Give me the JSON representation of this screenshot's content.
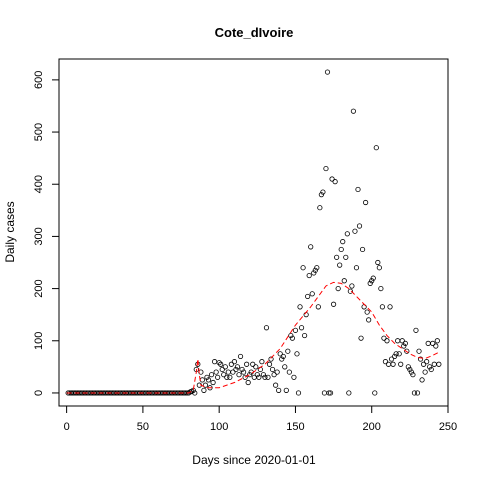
{
  "chart_data": {
    "type": "scatter",
    "title": "Cote_dIvoire",
    "xlabel": "Days since 2020-01-01",
    "ylabel": "Daily cases",
    "xlim": [
      -5,
      250
    ],
    "ylim": [
      -25,
      640
    ],
    "x_ticks": [
      0,
      50,
      100,
      150,
      200,
      250
    ],
    "y_ticks": [
      0,
      100,
      200,
      300,
      400,
      500,
      600
    ],
    "points": [
      [
        1,
        0
      ],
      [
        2,
        0
      ],
      [
        3,
        0
      ],
      [
        4,
        0
      ],
      [
        5,
        0
      ],
      [
        6,
        0
      ],
      [
        7,
        0
      ],
      [
        8,
        0
      ],
      [
        9,
        0
      ],
      [
        10,
        0
      ],
      [
        11,
        0
      ],
      [
        12,
        0
      ],
      [
        13,
        0
      ],
      [
        14,
        0
      ],
      [
        15,
        0
      ],
      [
        16,
        0
      ],
      [
        17,
        0
      ],
      [
        18,
        0
      ],
      [
        19,
        0
      ],
      [
        20,
        0
      ],
      [
        21,
        0
      ],
      [
        22,
        0
      ],
      [
        23,
        0
      ],
      [
        24,
        0
      ],
      [
        25,
        0
      ],
      [
        26,
        0
      ],
      [
        27,
        0
      ],
      [
        28,
        0
      ],
      [
        29,
        0
      ],
      [
        30,
        0
      ],
      [
        31,
        0
      ],
      [
        32,
        0
      ],
      [
        33,
        0
      ],
      [
        34,
        0
      ],
      [
        35,
        0
      ],
      [
        36,
        0
      ],
      [
        37,
        0
      ],
      [
        38,
        0
      ],
      [
        39,
        0
      ],
      [
        40,
        0
      ],
      [
        41,
        0
      ],
      [
        42,
        0
      ],
      [
        43,
        0
      ],
      [
        44,
        0
      ],
      [
        45,
        0
      ],
      [
        46,
        0
      ],
      [
        47,
        0
      ],
      [
        48,
        0
      ],
      [
        49,
        0
      ],
      [
        50,
        0
      ],
      [
        51,
        0
      ],
      [
        52,
        0
      ],
      [
        53,
        0
      ],
      [
        54,
        0
      ],
      [
        55,
        0
      ],
      [
        56,
        0
      ],
      [
        57,
        0
      ],
      [
        58,
        0
      ],
      [
        59,
        0
      ],
      [
        60,
        0
      ],
      [
        61,
        0
      ],
      [
        62,
        0
      ],
      [
        63,
        0
      ],
      [
        64,
        0
      ],
      [
        65,
        0
      ],
      [
        66,
        0
      ],
      [
        67,
        0
      ],
      [
        68,
        0
      ],
      [
        69,
        0
      ],
      [
        70,
        0
      ],
      [
        71,
        0
      ],
      [
        72,
        0
      ],
      [
        73,
        0
      ],
      [
        74,
        0
      ],
      [
        75,
        0
      ],
      [
        76,
        0
      ],
      [
        77,
        0
      ],
      [
        78,
        0
      ],
      [
        79,
        0
      ],
      [
        80,
        0
      ],
      [
        81,
        2
      ],
      [
        82,
        3
      ],
      [
        83,
        5
      ],
      [
        84,
        0
      ],
      [
        85,
        45
      ],
      [
        86,
        55
      ],
      [
        87,
        15
      ],
      [
        88,
        40
      ],
      [
        89,
        25
      ],
      [
        90,
        5
      ],
      [
        91,
        15
      ],
      [
        92,
        30
      ],
      [
        93,
        25
      ],
      [
        94,
        10
      ],
      [
        95,
        35
      ],
      [
        96,
        20
      ],
      [
        97,
        60
      ],
      [
        98,
        40
      ],
      [
        99,
        30
      ],
      [
        100,
        58
      ],
      [
        101,
        55
      ],
      [
        102,
        45
      ],
      [
        103,
        35
      ],
      [
        104,
        50
      ],
      [
        105,
        30
      ],
      [
        106,
        40
      ],
      [
        107,
        30
      ],
      [
        108,
        55
      ],
      [
        109,
        40
      ],
      [
        110,
        60
      ],
      [
        111,
        45
      ],
      [
        112,
        50
      ],
      [
        113,
        35
      ],
      [
        114,
        70
      ],
      [
        115,
        45
      ],
      [
        116,
        40
      ],
      [
        117,
        30
      ],
      [
        118,
        55
      ],
      [
        119,
        20
      ],
      [
        120,
        35
      ],
      [
        121,
        40
      ],
      [
        122,
        55
      ],
      [
        123,
        30
      ],
      [
        124,
        50
      ],
      [
        125,
        35
      ],
      [
        126,
        30
      ],
      [
        127,
        45
      ],
      [
        128,
        60
      ],
      [
        129,
        35
      ],
      [
        130,
        30
      ],
      [
        131,
        125
      ],
      [
        132,
        30
      ],
      [
        133,
        55
      ],
      [
        134,
        65
      ],
      [
        135,
        45
      ],
      [
        136,
        35
      ],
      [
        137,
        15
      ],
      [
        138,
        40
      ],
      [
        139,
        5
      ],
      [
        140,
        75
      ],
      [
        141,
        65
      ],
      [
        142,
        70
      ],
      [
        143,
        50
      ],
      [
        144,
        5
      ],
      [
        145,
        80
      ],
      [
        146,
        40
      ],
      [
        147,
        110
      ],
      [
        148,
        105
      ],
      [
        149,
        30
      ],
      [
        150,
        120
      ],
      [
        151,
        75
      ],
      [
        152,
        0
      ],
      [
        153,
        165
      ],
      [
        154,
        125
      ],
      [
        155,
        240
      ],
      [
        156,
        110
      ],
      [
        157,
        150
      ],
      [
        158,
        185
      ],
      [
        159,
        225
      ],
      [
        160,
        280
      ],
      [
        161,
        190
      ],
      [
        162,
        230
      ],
      [
        163,
        235
      ],
      [
        164,
        240
      ],
      [
        165,
        165
      ],
      [
        166,
        355
      ],
      [
        167,
        380
      ],
      [
        168,
        385
      ],
      [
        169,
        0
      ],
      [
        170,
        430
      ],
      [
        171,
        615
      ],
      [
        172,
        0
      ],
      [
        173,
        0
      ],
      [
        174,
        410
      ],
      [
        175,
        170
      ],
      [
        176,
        405
      ],
      [
        177,
        260
      ],
      [
        178,
        200
      ],
      [
        179,
        245
      ],
      [
        180,
        275
      ],
      [
        181,
        290
      ],
      [
        182,
        215
      ],
      [
        183,
        260
      ],
      [
        184,
        305
      ],
      [
        185,
        0
      ],
      [
        186,
        195
      ],
      [
        187,
        205
      ],
      [
        188,
        540
      ],
      [
        189,
        310
      ],
      [
        190,
        240
      ],
      [
        191,
        390
      ],
      [
        192,
        320
      ],
      [
        193,
        105
      ],
      [
        194,
        275
      ],
      [
        195,
        165
      ],
      [
        196,
        365
      ],
      [
        197,
        155
      ],
      [
        198,
        140
      ],
      [
        199,
        210
      ],
      [
        200,
        215
      ],
      [
        201,
        220
      ],
      [
        202,
        0
      ],
      [
        203,
        470
      ],
      [
        204,
        250
      ],
      [
        205,
        240
      ],
      [
        206,
        200
      ],
      [
        207,
        165
      ],
      [
        208,
        105
      ],
      [
        209,
        60
      ],
      [
        210,
        100
      ],
      [
        211,
        55
      ],
      [
        212,
        165
      ],
      [
        213,
        65
      ],
      [
        214,
        55
      ],
      [
        215,
        70
      ],
      [
        216,
        75
      ],
      [
        217,
        100
      ],
      [
        218,
        75
      ],
      [
        219,
        55
      ],
      [
        220,
        100
      ],
      [
        221,
        90
      ],
      [
        222,
        95
      ],
      [
        223,
        80
      ],
      [
        224,
        50
      ],
      [
        225,
        45
      ],
      [
        226,
        40
      ],
      [
        227,
        35
      ],
      [
        228,
        0
      ],
      [
        229,
        120
      ],
      [
        230,
        0
      ],
      [
        231,
        80
      ],
      [
        232,
        65
      ],
      [
        233,
        25
      ],
      [
        234,
        55
      ],
      [
        235,
        40
      ],
      [
        236,
        60
      ],
      [
        237,
        95
      ],
      [
        238,
        50
      ],
      [
        239,
        45
      ],
      [
        240,
        95
      ],
      [
        241,
        55
      ],
      [
        242,
        90
      ],
      [
        243,
        100
      ],
      [
        244,
        55
      ]
    ],
    "trend": [
      [
        0,
        0
      ],
      [
        80,
        0
      ],
      [
        83,
        5
      ],
      [
        85,
        40
      ],
      [
        86,
        65
      ],
      [
        87,
        35
      ],
      [
        88,
        15
      ],
      [
        92,
        10
      ],
      [
        100,
        10
      ],
      [
        110,
        20
      ],
      [
        120,
        35
      ],
      [
        130,
        55
      ],
      [
        140,
        85
      ],
      [
        150,
        130
      ],
      [
        160,
        165
      ],
      [
        165,
        185
      ],
      [
        170,
        205
      ],
      [
        175,
        212
      ],
      [
        180,
        210
      ],
      [
        185,
        200
      ],
      [
        190,
        185
      ],
      [
        195,
        170
      ],
      [
        200,
        155
      ],
      [
        205,
        130
      ],
      [
        210,
        110
      ],
      [
        215,
        95
      ],
      [
        220,
        85
      ],
      [
        225,
        75
      ],
      [
        230,
        68
      ],
      [
        235,
        66
      ],
      [
        240,
        72
      ],
      [
        244,
        78
      ]
    ],
    "series_colors": {
      "points": "#000000",
      "trend": "#ff0000"
    },
    "grid": false
  }
}
